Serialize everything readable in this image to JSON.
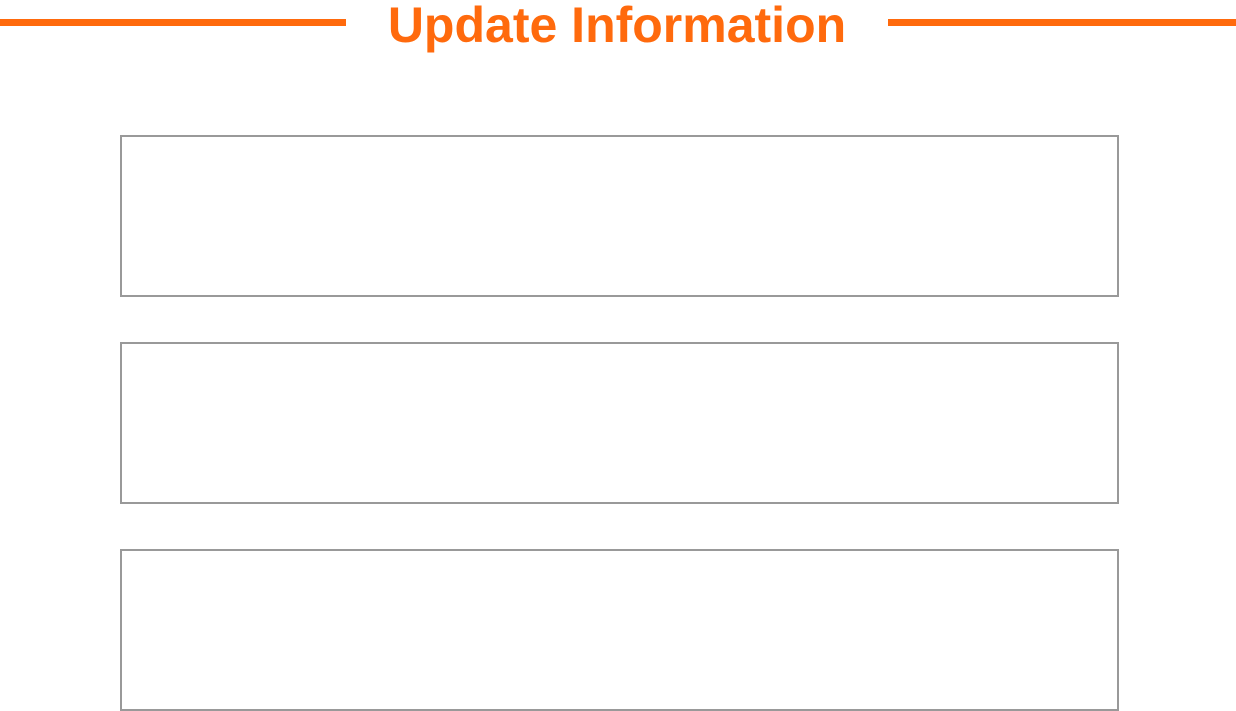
{
  "header": {
    "title": "Update Information",
    "accent_color": "#ff6a0d"
  },
  "fields": [
    {
      "value": "",
      "placeholder": ""
    },
    {
      "value": "",
      "placeholder": ""
    },
    {
      "value": "",
      "placeholder": ""
    }
  ],
  "field_border_color": "#999999"
}
